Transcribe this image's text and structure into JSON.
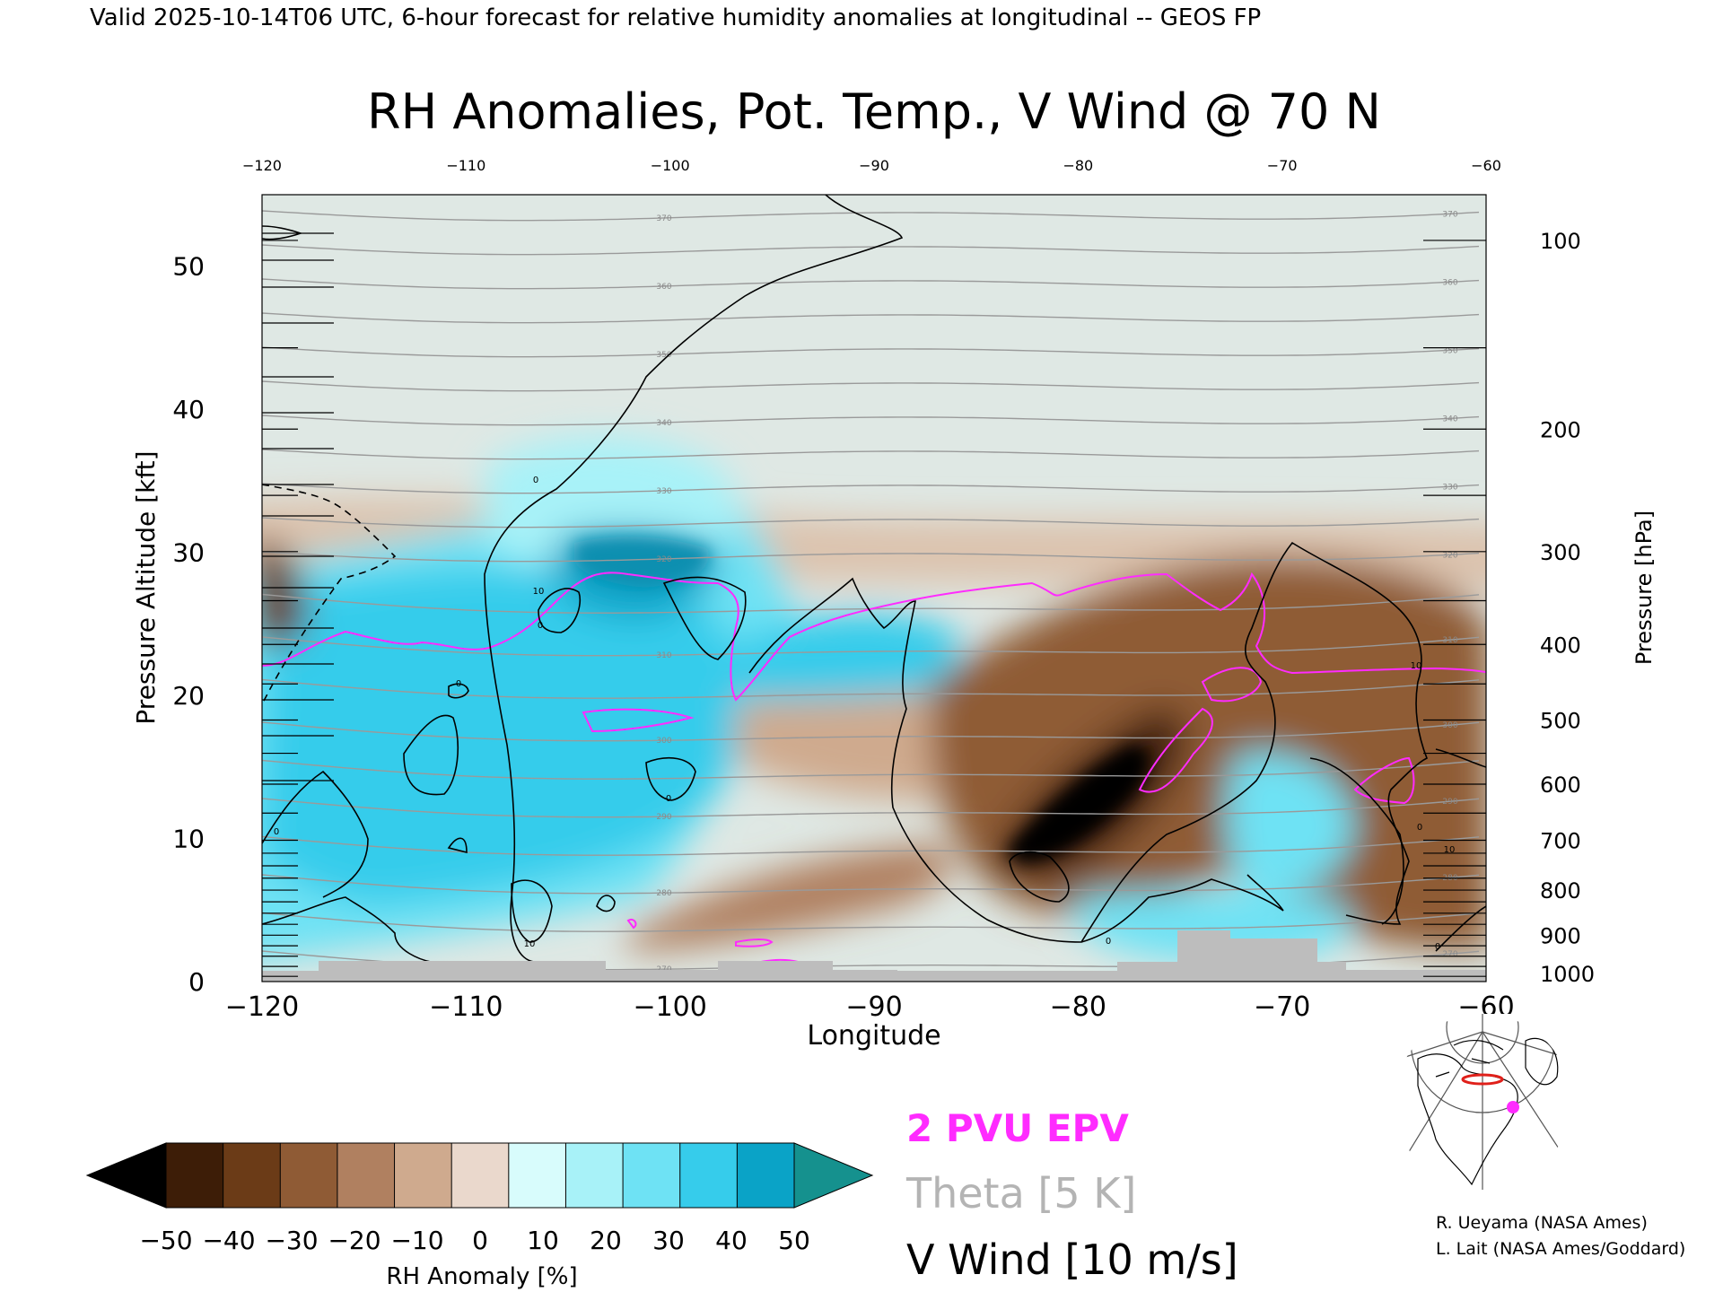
{
  "header": {
    "valid_line": "Valid 2025-10-14T06 UTC, 6-hour forecast for relative humidity anomalies at longitudinal -- GEOS FP"
  },
  "chart_data": {
    "type": "heatmap",
    "title": "RH Anomalies, Pot. Temp., V Wind @ 70 N",
    "xlabel": "Longitude",
    "ylabel_left": "Pressure Altitude [kft]",
    "ylabel_right": "Pressure [hPa]",
    "xlim": [
      -120,
      -60
    ],
    "ylim": [
      0,
      55
    ],
    "x_ticks": [
      -120,
      -110,
      -100,
      -90,
      -80,
      -70,
      -60
    ],
    "x_tick_labels": [
      "−120",
      "−110",
      "−100",
      "−90",
      "−80",
      "−70",
      "−60"
    ],
    "y_ticks": [
      0,
      10,
      20,
      30,
      40,
      50
    ],
    "y_tick_labels": [
      "0",
      "10",
      "20",
      "30",
      "40",
      "50"
    ],
    "pressure_ticks_hpa": [
      100,
      200,
      300,
      400,
      500,
      600,
      700,
      800,
      900,
      1000
    ],
    "theta_levels_k": [
      270,
      280,
      290,
      300,
      310,
      320,
      330,
      340,
      350,
      360,
      370,
      380,
      390,
      400,
      410,
      420
    ],
    "colorbar": {
      "label": "RH Anomaly [%]",
      "levels": [
        -50,
        -40,
        -30,
        -20,
        -10,
        0,
        10,
        20,
        30,
        40,
        50
      ],
      "tick_labels": [
        "−50",
        "−40",
        "−30",
        "−20",
        "−10",
        "0",
        "10",
        "20",
        "30",
        "40",
        "50"
      ],
      "colors": [
        "#3d1d07",
        "#6b3b17",
        "#8f5b35",
        "#b08060",
        "#cfaa8e",
        "#ead8cc",
        "#d8fcfc",
        "#a8f2f8",
        "#6ee2f4",
        "#36cceb",
        "#0aa3c7"
      ],
      "under_color": "#000000",
      "over_color": "#15918e"
    },
    "legend": [
      {
        "label": "2 PVU EPV",
        "color": "#ff2bff"
      },
      {
        "label": "Theta [5 K]",
        "color": "#b4b4b4"
      },
      {
        "label": "V Wind [10 m/s]",
        "color": "#000000"
      }
    ],
    "background_color": "#dfe8e4",
    "terrain_color": "#bdbdbd"
  },
  "credits": {
    "line1": "R. Ueyama (NASA Ames)",
    "line2": "L. Lait (NASA Ames/Goddard)"
  }
}
